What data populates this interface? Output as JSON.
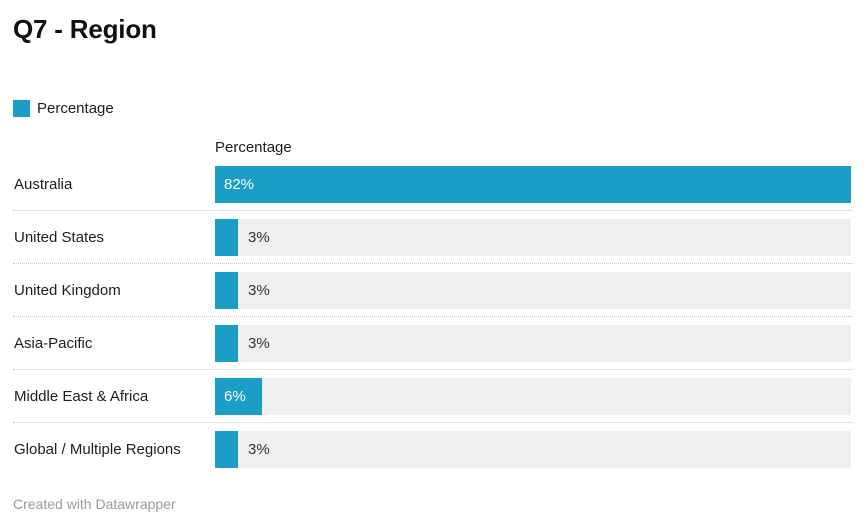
{
  "title": "Q7 - Region",
  "legend": {
    "label": "Percentage"
  },
  "column_header": "Percentage",
  "footer": "Created with Datawrapper",
  "colors": {
    "bar": "#1a9dc7",
    "track": "#efefef",
    "title_text": "#101010",
    "label_text": "#1d1d1d",
    "value_inside": "#ffffff",
    "value_outside": "#333333",
    "separator": "#c6c6c6",
    "footer_text": "#9b9b9b",
    "background": "#ffffff"
  },
  "chart_data": {
    "type": "bar",
    "orientation": "horizontal",
    "title": "Q7 - Region",
    "legend_entries": [
      "Percentage"
    ],
    "legend_position": "top-left",
    "categories": [
      "Australia",
      "United States",
      "United Kingdom",
      "Asia-Pacific",
      "Middle East & Africa",
      "Global / Multiple Regions"
    ],
    "values": [
      82,
      3,
      3,
      3,
      6,
      3
    ],
    "value_labels": [
      "82%",
      "3%",
      "3%",
      "3%",
      "6%",
      "3%"
    ],
    "label_placement": [
      "inside",
      "outside",
      "outside",
      "outside",
      "inside",
      "outside"
    ],
    "unit": "%",
    "xlabel": "Percentage",
    "ylabel": "",
    "xmax": 82,
    "grid": false,
    "row_separators": "dotted",
    "attribution": "Created with Datawrapper"
  }
}
